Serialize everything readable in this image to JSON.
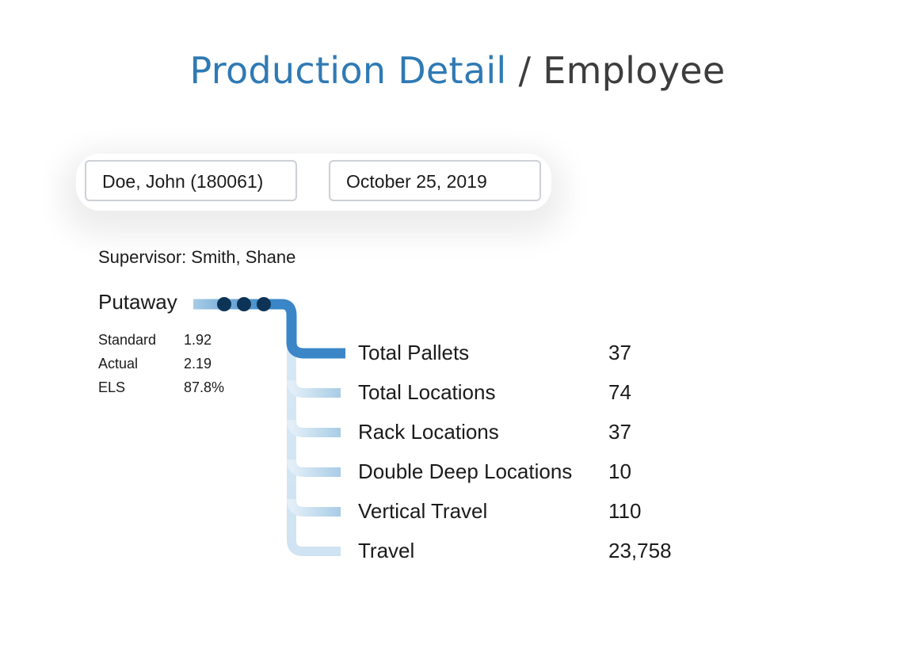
{
  "header": {
    "title_main": "Production Detail",
    "title_separator": "/",
    "title_sub": "Employee"
  },
  "filters": {
    "employee": "Doe, John (180061)",
    "date": "October 25, 2019"
  },
  "supervisor": {
    "label": "Supervisor:",
    "name": "Smith, Shane"
  },
  "category": {
    "name": "Putaway",
    "kpis": [
      {
        "label": "Standard",
        "value": "1.92"
      },
      {
        "label": "Actual",
        "value": "2.19"
      },
      {
        "label": "ELS",
        "value": "87.8%"
      }
    ]
  },
  "metrics": [
    {
      "label": "Total Pallets",
      "value": "37"
    },
    {
      "label": "Total Locations",
      "value": "74"
    },
    {
      "label": "Rack Locations",
      "value": "37"
    },
    {
      "label": "Double Deep Locations",
      "value": "10"
    },
    {
      "label": "Vertical Travel",
      "value": "110"
    },
    {
      "label": "Travel",
      "value": "23,758"
    }
  ],
  "colors": {
    "title_accent": "#2f7ab4",
    "connector_strong": "#3a86c6",
    "connector_light": "#a8cce6",
    "dots": "#0d3456"
  },
  "icons": {
    "more": "three-dots-icon"
  }
}
